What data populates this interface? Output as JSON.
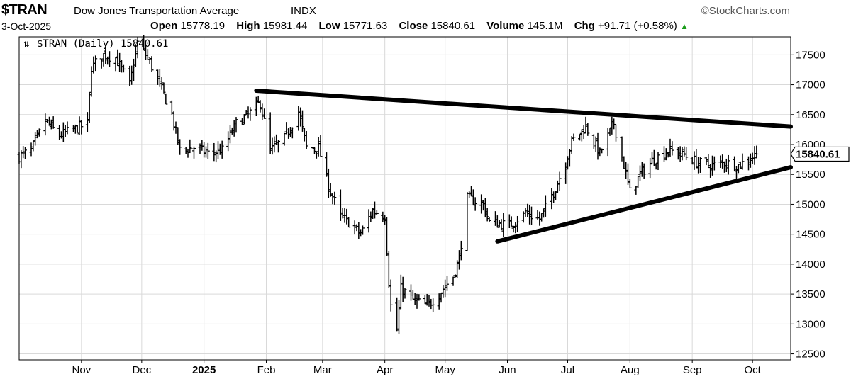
{
  "header": {
    "symbol": "$TRAN",
    "name": "Dow Jones Transportation Average",
    "exchange": "INDX",
    "source": "©StockCharts.com",
    "date": "3-Oct-2025",
    "open_label": "Open",
    "open": "15778.19",
    "high_label": "High",
    "high": "15981.44",
    "low_label": "Low",
    "low": "15771.63",
    "close_label": "Close",
    "close": "15840.61",
    "volume_label": "Volume",
    "volume": "145.1M",
    "chg_label": "Chg",
    "chg": "+91.71 (+0.58%)"
  },
  "legend": "$TRAN (Daily) 15840.61",
  "price_tag": "15840.61",
  "colors": {
    "bars": "#000000",
    "grid": "#d9d9d9",
    "trendline": "#000000",
    "change_up": "#1a9c1a"
  },
  "chart_data": {
    "type": "ohlc",
    "title": "$TRAN Dow Jones Transportation Average INDX",
    "ylim": [
      12400,
      17800
    ],
    "yticks": [
      12500,
      13000,
      13500,
      14000,
      14500,
      15000,
      15500,
      16000,
      16500,
      17000,
      17500
    ],
    "x_range": [
      "2024-10-01",
      "2025-10-20"
    ],
    "xticks": [
      {
        "label": "Nov",
        "date": "2024-11-01",
        "bold": false
      },
      {
        "label": "Dec",
        "date": "2024-12-01",
        "bold": false
      },
      {
        "label": "2025",
        "date": "2025-01-01",
        "bold": true
      },
      {
        "label": "Feb",
        "date": "2025-02-01",
        "bold": false
      },
      {
        "label": "Mar",
        "date": "2025-03-01",
        "bold": false
      },
      {
        "label": "Apr",
        "date": "2025-04-01",
        "bold": false
      },
      {
        "label": "May",
        "date": "2025-05-01",
        "bold": false
      },
      {
        "label": "Jun",
        "date": "2025-06-01",
        "bold": false
      },
      {
        "label": "Jul",
        "date": "2025-07-01",
        "bold": false
      },
      {
        "label": "Aug",
        "date": "2025-08-01",
        "bold": false
      },
      {
        "label": "Sep",
        "date": "2025-09-01",
        "bold": false
      },
      {
        "label": "Oct",
        "date": "2025-10-01",
        "bold": false
      }
    ],
    "grid": true,
    "close_path": [
      [
        "2024-10-01",
        15800
      ],
      [
        "2024-10-07",
        15900
      ],
      [
        "2024-10-14",
        16400
      ],
      [
        "2024-10-21",
        16150
      ],
      [
        "2024-10-28",
        16250
      ],
      [
        "2024-11-04",
        16350
      ],
      [
        "2024-11-06",
        17300
      ],
      [
        "2024-11-12",
        17500
      ],
      [
        "2024-11-18",
        17450
      ],
      [
        "2024-11-25",
        17000
      ],
      [
        "2024-11-29",
        17700
      ],
      [
        "2024-12-04",
        17450
      ],
      [
        "2024-12-10",
        17000
      ],
      [
        "2024-12-16",
        16500
      ],
      [
        "2024-12-20",
        15900
      ],
      [
        "2024-12-27",
        15950
      ],
      [
        "2025-01-03",
        15850
      ],
      [
        "2025-01-10",
        15900
      ],
      [
        "2025-01-17",
        16350
      ],
      [
        "2025-01-23",
        16500
      ],
      [
        "2025-01-29",
        16700
      ],
      [
        "2025-02-03",
        15900
      ],
      [
        "2025-02-10",
        16100
      ],
      [
        "2025-02-17",
        16550
      ],
      [
        "2025-02-21",
        15950
      ],
      [
        "2025-02-27",
        15950
      ],
      [
        "2025-03-04",
        15300
      ],
      [
        "2025-03-10",
        14800
      ],
      [
        "2025-03-14",
        14700
      ],
      [
        "2025-03-20",
        14500
      ],
      [
        "2025-03-26",
        14900
      ],
      [
        "2025-04-01",
        14800
      ],
      [
        "2025-04-03",
        13700
      ],
      [
        "2025-04-04",
        13300
      ],
      [
        "2025-04-07",
        12900
      ],
      [
        "2025-04-09",
        13600
      ],
      [
        "2025-04-15",
        13400
      ],
      [
        "2025-04-22",
        13300
      ],
      [
        "2025-04-28",
        13500
      ],
      [
        "2025-05-05",
        13800
      ],
      [
        "2025-05-08",
        14100
      ],
      [
        "2025-05-12",
        15100
      ],
      [
        "2025-05-20",
        15000
      ],
      [
        "2025-05-23",
        14700
      ],
      [
        "2025-06-02",
        14650
      ],
      [
        "2025-06-10",
        14850
      ],
      [
        "2025-06-17",
        14750
      ],
      [
        "2025-06-24",
        15200
      ],
      [
        "2025-06-30",
        15700
      ],
      [
        "2025-07-03",
        16050
      ],
      [
        "2025-07-10",
        16300
      ],
      [
        "2025-07-17",
        15850
      ],
      [
        "2025-07-24",
        16350
      ],
      [
        "2025-07-29",
        15650
      ],
      [
        "2025-08-01",
        15200
      ],
      [
        "2025-08-07",
        15550
      ],
      [
        "2025-08-13",
        15750
      ],
      [
        "2025-08-20",
        15900
      ],
      [
        "2025-08-27",
        15850
      ],
      [
        "2025-09-03",
        15700
      ],
      [
        "2025-09-10",
        15650
      ],
      [
        "2025-09-17",
        15700
      ],
      [
        "2025-09-24",
        15650
      ],
      [
        "2025-10-03",
        15840
      ]
    ],
    "last": {
      "date": "2025-10-03",
      "open": 15778.19,
      "high": 15981.44,
      "low": 15771.63,
      "close": 15840.61,
      "volume": "145.1M"
    },
    "trendlines": [
      {
        "name": "upper",
        "from": [
          "2025-01-27",
          16900
        ],
        "to": [
          "2025-10-20",
          16300
        ]
      },
      {
        "name": "lower",
        "from": [
          "2025-05-27",
          14380
        ],
        "to": [
          "2025-10-20",
          15620
        ]
      }
    ]
  }
}
